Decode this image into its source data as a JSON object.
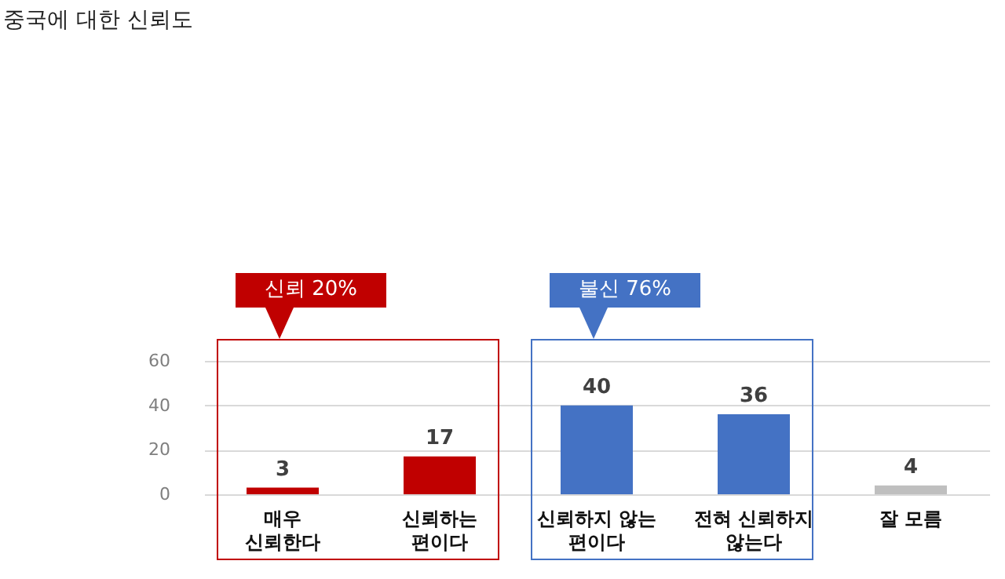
{
  "chart_data": {
    "type": "bar",
    "title": "중국에 대한 신뢰도",
    "categories": [
      "매우\n신뢰한다",
      "신뢰하는\n편이다",
      "신뢰하지 않는\n편이다",
      "전혀 신뢰하지\n않는다",
      "잘 모름"
    ],
    "values": [
      3,
      17,
      40,
      36,
      4
    ],
    "colors": [
      "#c00000",
      "#c00000",
      "#4472c4",
      "#4472c4",
      "#bfbfbf"
    ],
    "ylim": [
      0,
      60
    ],
    "yticks": [
      0,
      20,
      40,
      60
    ],
    "grid": "y",
    "data_labels": true,
    "annotations": [
      "신뢰 20%",
      "불신 76%"
    ]
  }
}
